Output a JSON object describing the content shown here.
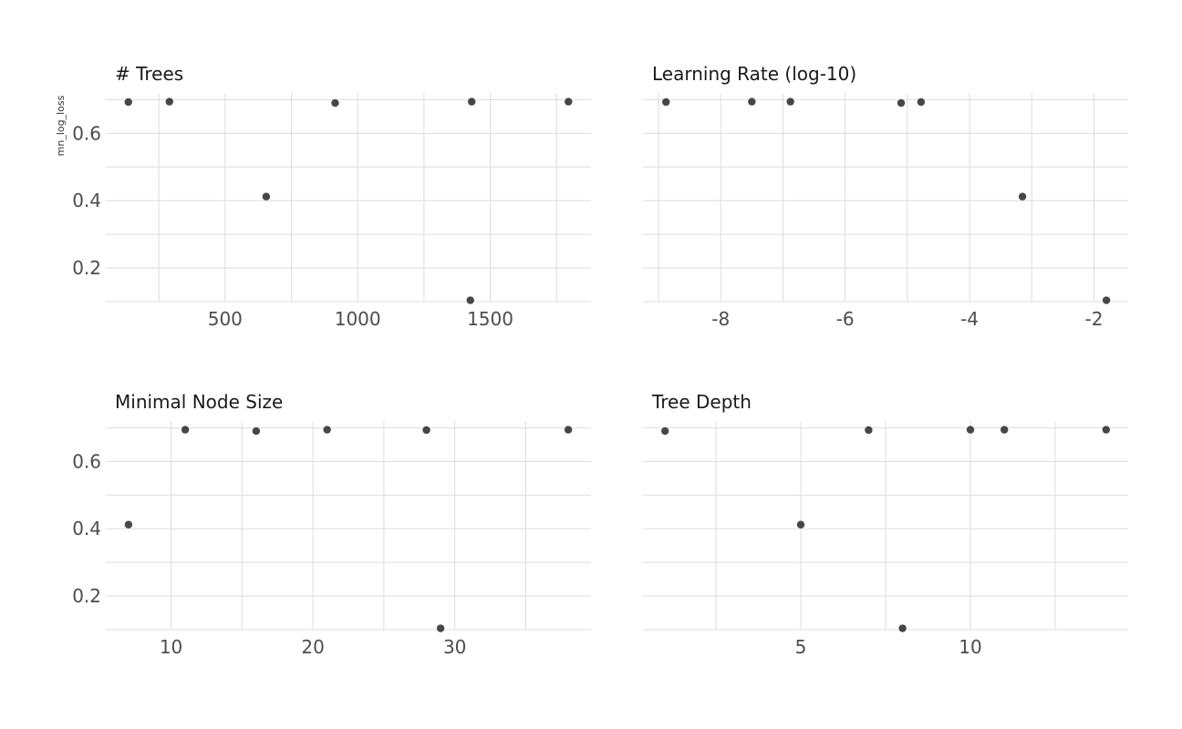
{
  "chart_data": {
    "type": "scatter",
    "ylabel": "mn_log_loss",
    "grid": true,
    "point_color": "#333333",
    "grid_color": "#dddddd",
    "panels": [
      {
        "title": "# Trees",
        "xlim": [
          50,
          1880
        ],
        "ylim": [
          0.1,
          0.72
        ],
        "xticks": [
          500,
          1000,
          1500
        ],
        "xticklabels": [
          "500",
          "1000",
          "1500"
        ],
        "yticks": [
          0.2,
          0.4,
          0.6
        ],
        "yticklabels": [
          "0.2",
          "0.4",
          "0.6"
        ],
        "points": [
          {
            "x": 135,
            "y": 0.693
          },
          {
            "x": 290,
            "y": 0.694
          },
          {
            "x": 655,
            "y": 0.412
          },
          {
            "x": 915,
            "y": 0.69
          },
          {
            "x": 1425,
            "y": 0.104
          },
          {
            "x": 1430,
            "y": 0.694
          },
          {
            "x": 1795,
            "y": 0.694
          }
        ]
      },
      {
        "title": "Learning Rate (log-10)",
        "xlim": [
          -9.25,
          -1.45
        ],
        "ylim": [
          0.1,
          0.72
        ],
        "xticks": [
          -8,
          -6,
          -4,
          -2
        ],
        "xticklabels": [
          "-8",
          "-6",
          "-4",
          "-2"
        ],
        "yticks": [
          0.2,
          0.4,
          0.6
        ],
        "yticklabels": [],
        "points": [
          {
            "x": -8.88,
            "y": 0.693
          },
          {
            "x": -7.5,
            "y": 0.694
          },
          {
            "x": -6.88,
            "y": 0.694
          },
          {
            "x": -5.1,
            "y": 0.69
          },
          {
            "x": -4.78,
            "y": 0.693
          },
          {
            "x": -3.15,
            "y": 0.412
          },
          {
            "x": -1.8,
            "y": 0.104
          }
        ]
      },
      {
        "title": "Minimal Node Size",
        "xlim": [
          5.4,
          39.6
        ],
        "ylim": [
          0.1,
          0.72
        ],
        "xticks": [
          10,
          20,
          30
        ],
        "xticklabels": [
          "10",
          "20",
          "30"
        ],
        "yticks": [
          0.2,
          0.4,
          0.6
        ],
        "yticklabels": [
          "0.2",
          "0.4",
          "0.6"
        ],
        "points": [
          {
            "x": 7,
            "y": 0.412
          },
          {
            "x": 11,
            "y": 0.694
          },
          {
            "x": 16,
            "y": 0.69
          },
          {
            "x": 21,
            "y": 0.694
          },
          {
            "x": 28,
            "y": 0.693
          },
          {
            "x": 29,
            "y": 0.104
          },
          {
            "x": 38,
            "y": 0.694
          }
        ]
      },
      {
        "title": "Tree Depth",
        "xlim": [
          0.35,
          14.65
        ],
        "ylim": [
          0.1,
          0.72
        ],
        "xticks": [
          5,
          10
        ],
        "xticklabels": [
          "5",
          "10"
        ],
        "yticks": [
          0.2,
          0.4,
          0.6
        ],
        "yticklabels": [],
        "points": [
          {
            "x": 1,
            "y": 0.69
          },
          {
            "x": 5,
            "y": 0.412
          },
          {
            "x": 7,
            "y": 0.693
          },
          {
            "x": 8,
            "y": 0.104
          },
          {
            "x": 10,
            "y": 0.694
          },
          {
            "x": 11,
            "y": 0.694
          },
          {
            "x": 14,
            "y": 0.694
          }
        ]
      }
    ]
  }
}
